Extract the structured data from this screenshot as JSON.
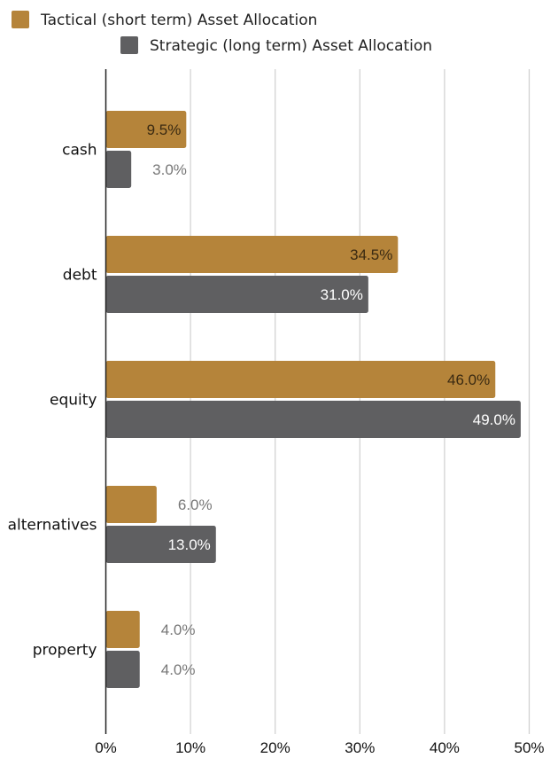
{
  "chart_data": {
    "type": "bar",
    "orientation": "horizontal",
    "categories": [
      "cash",
      "debt",
      "equity",
      "alternatives",
      "property"
    ],
    "series": [
      {
        "name": "Tactical (short term) Asset Allocation",
        "color": "#B5843A",
        "values": [
          9.5,
          34.5,
          46.0,
          6.0,
          4.0
        ],
        "labels": [
          "9.5%",
          "34.5%",
          "46.0%",
          "6.0%",
          "4.0%"
        ]
      },
      {
        "name": "Strategic (long term) Asset Allocation",
        "color": "#5F5F61",
        "values": [
          3.0,
          31.0,
          49.0,
          13.0,
          4.0
        ],
        "labels": [
          "3.0%",
          "31.0%",
          "49.0%",
          "13.0%",
          "4.0%"
        ]
      }
    ],
    "xlim": [
      0,
      50
    ],
    "x_ticks": [
      0,
      10,
      20,
      30,
      40,
      50
    ],
    "x_tick_labels": [
      "0%",
      "10%",
      "20%",
      "30%",
      "40%",
      "50%"
    ],
    "grid": "vertical",
    "legend": "top-left",
    "title": "",
    "xlabel": "",
    "ylabel": ""
  }
}
